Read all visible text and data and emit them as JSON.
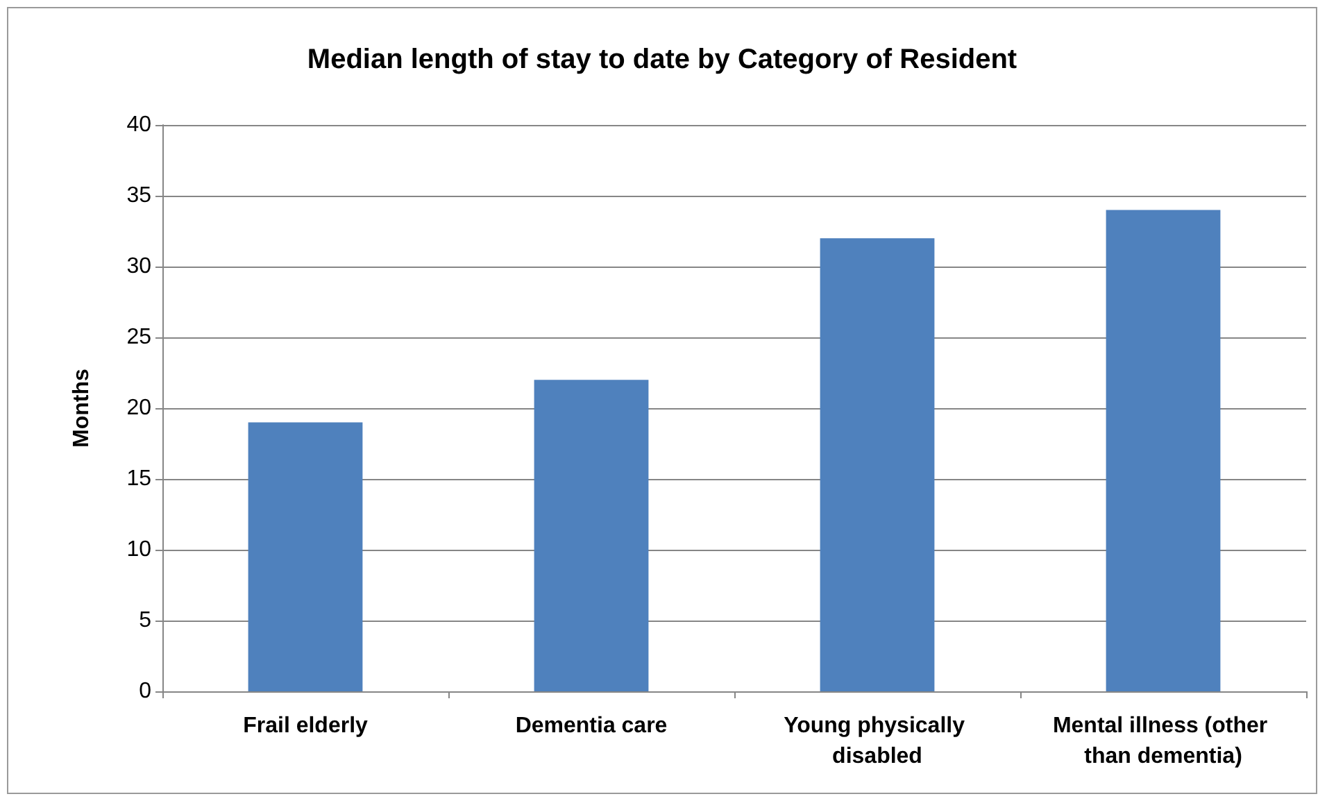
{
  "chart_data": {
    "type": "bar",
    "title": "Median length of stay to date by Category of Resident",
    "ylabel": "Months",
    "categories": [
      "Frail elderly",
      "Dementia care",
      "Young physically disabled",
      "Mental illness (other than dementia)"
    ],
    "values": [
      19,
      22,
      32,
      34
    ],
    "color": "#4f81bd",
    "ylim": [
      0,
      40
    ],
    "yticks": [
      0,
      5,
      10,
      15,
      20,
      25,
      30,
      35,
      40
    ],
    "grid": "y"
  }
}
